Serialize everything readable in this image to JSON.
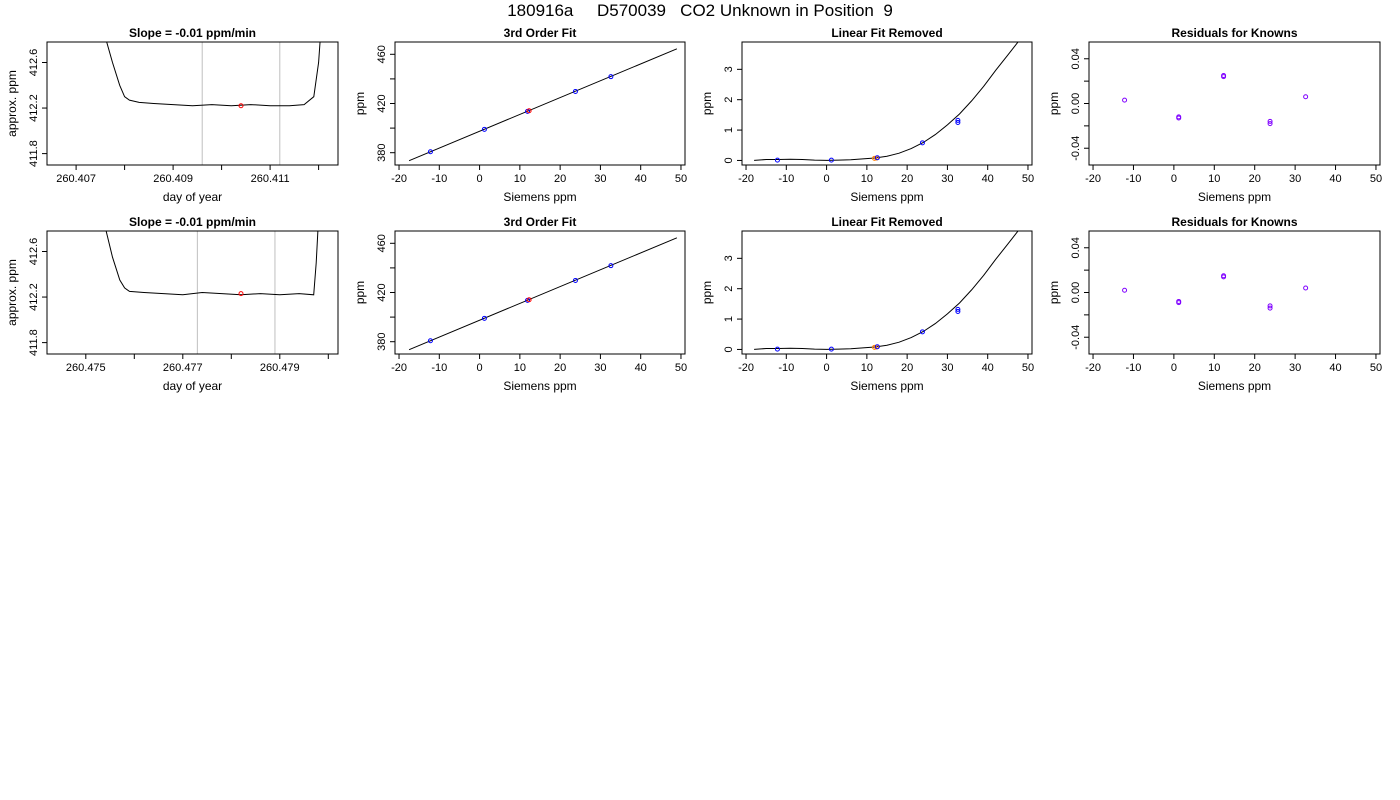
{
  "title": "180916a     D570039   CO2 Unknown in Position  9",
  "colors": {
    "axis": "#000000",
    "curve": "#000000",
    "marker_blue": "#0000ff",
    "marker_red": "#ff0000",
    "marker_purple": "#7f00ff",
    "vline": "#bebebe"
  },
  "chart_data": [
    {
      "type": "line",
      "row": 1,
      "panel": "timeseries",
      "title": "Slope =  -0.01  ppm/min",
      "xlabel": "day of year",
      "ylabel": "approx. ppm",
      "xlim": [
        260.4064,
        260.4124
      ],
      "ylim": [
        411.7,
        412.78
      ],
      "xticks": [
        260.407,
        260.408,
        260.409,
        260.41,
        260.411,
        260.412
      ],
      "xtick_labels": [
        "260.407",
        "",
        "260.409",
        "",
        "260.411",
        ""
      ],
      "yticks": [
        411.8,
        412.2,
        412.6
      ],
      "ytick_labels": [
        "411.8",
        "412.2",
        "412.6"
      ],
      "vlines": [
        260.4096,
        260.4112
      ],
      "series": [
        {
          "x": [
            260.40755,
            260.40775,
            260.4079,
            260.408,
            260.4081,
            260.4083,
            260.4086,
            260.409,
            260.4094,
            260.4098,
            260.4102,
            260.4106,
            260.411,
            260.4114,
            260.4117,
            260.4119,
            260.412,
            260.41205
          ],
          "y": [
            412.9,
            412.6,
            412.4,
            412.3,
            412.27,
            412.25,
            412.24,
            412.23,
            412.22,
            412.23,
            412.22,
            412.23,
            412.22,
            412.22,
            412.23,
            412.3,
            412.6,
            412.9
          ]
        }
      ],
      "marker": {
        "x": 260.4104,
        "y": 412.22,
        "color": "#ff0000"
      }
    },
    {
      "type": "scatter",
      "row": 1,
      "panel": "fit",
      "title": "3rd Order Fit",
      "xlabel": "Siemens ppm",
      "ylabel": "ppm",
      "xlim": [
        -21,
        51
      ],
      "ylim": [
        370,
        470
      ],
      "xticks": [
        -20,
        -10,
        0,
        10,
        20,
        30,
        40,
        50
      ],
      "xtick_labels": [
        "-20",
        "-10",
        "0",
        "10",
        "20",
        "30",
        "40",
        "50"
      ],
      "yticks": [
        380,
        400,
        420,
        440,
        460
      ],
      "ytick_labels": [
        "380",
        "",
        "420",
        "",
        "460"
      ],
      "curve": {
        "x": [
          -17.5,
          49
        ],
        "y": [
          373.5,
          464.5
        ]
      },
      "series": [
        {
          "color": "#0000ff",
          "x": [
            -12.2,
            1.2,
            11.9,
            23.8,
            32.6
          ],
          "y": [
            380.8,
            399.0,
            413.6,
            429.8,
            441.8
          ]
        },
        {
          "color": "#ff0000",
          "x": [
            12.3
          ],
          "y": [
            414.1
          ]
        }
      ]
    },
    {
      "type": "scatter",
      "row": 1,
      "panel": "linear-removed",
      "title": "Linear Fit Removed",
      "xlabel": "Siemens ppm",
      "ylabel": "ppm",
      "xlim": [
        -21,
        51
      ],
      "ylim": [
        -0.15,
        3.9
      ],
      "xticks": [
        -20,
        -10,
        0,
        10,
        20,
        30,
        40,
        50
      ],
      "xtick_labels": [
        "-20",
        "-10",
        "0",
        "10",
        "20",
        "30",
        "40",
        "50"
      ],
      "yticks": [
        0,
        1,
        2,
        3
      ],
      "ytick_labels": [
        "0",
        "1",
        "2",
        "3"
      ],
      "curve": {
        "x": [
          -18,
          -15,
          -12,
          -9,
          -6,
          -3,
          0,
          3,
          6,
          9,
          12,
          15,
          18,
          21,
          24,
          27,
          30,
          33,
          36,
          39,
          42,
          45,
          48,
          49
        ],
        "y": [
          0.0,
          0.03,
          0.03,
          0.04,
          0.03,
          0.01,
          0.0,
          0.01,
          0.02,
          0.05,
          0.08,
          0.14,
          0.24,
          0.39,
          0.59,
          0.85,
          1.17,
          1.53,
          1.96,
          2.44,
          2.97,
          3.47,
          3.98,
          4.15
        ]
      },
      "series": [
        {
          "color": "#0000ff",
          "x": [
            -12.2,
            1.2,
            23.8,
            32.6,
            32.6
          ],
          "y": [
            0.01,
            0.01,
            0.58,
            1.25,
            1.32
          ]
        },
        {
          "color": "#ff7f00",
          "x": [
            11.9,
            12.4
          ],
          "y": [
            0.07,
            0.08
          ]
        },
        {
          "color": "#0000ff",
          "x": [
            12.6
          ],
          "y": [
            0.09
          ]
        }
      ]
    },
    {
      "type": "scatter",
      "row": 1,
      "panel": "residuals",
      "title": "Residuals for Knowns",
      "xlabel": "Siemens ppm",
      "ylabel": "ppm",
      "xlim": [
        -21,
        51
      ],
      "ylim": [
        -0.055,
        0.055
      ],
      "xticks": [
        -20,
        -10,
        0,
        10,
        20,
        30,
        40,
        50
      ],
      "xtick_labels": [
        "-20",
        "-10",
        "0",
        "10",
        "20",
        "30",
        "40",
        "50"
      ],
      "yticks": [
        -0.04,
        -0.02,
        0.0,
        0.02,
        0.04
      ],
      "ytick_labels": [
        "-0.04",
        "",
        "0.00",
        "",
        "0.04"
      ],
      "series": [
        {
          "color": "#7f00ff",
          "x": [
            -12.2,
            1.2,
            1.2,
            12.3,
            12.3,
            23.8,
            23.8,
            32.6
          ],
          "y": [
            0.003,
            -0.012,
            -0.013,
            0.025,
            0.024,
            -0.016,
            -0.018,
            0.006
          ]
        }
      ]
    },
    {
      "type": "line",
      "row": 2,
      "panel": "timeseries",
      "title": "Slope =  -0.01  ppm/min",
      "xlabel": "day of year",
      "ylabel": "approx. ppm",
      "xlim": [
        260.4742,
        260.4802
      ],
      "ylim": [
        411.7,
        412.78
      ],
      "xticks": [
        260.475,
        260.476,
        260.477,
        260.478,
        260.479,
        260.48
      ],
      "xtick_labels": [
        "260.475",
        "",
        "260.477",
        "",
        "260.479",
        ""
      ],
      "yticks": [
        411.8,
        412.2,
        412.6
      ],
      "ytick_labels": [
        "411.8",
        "412.2",
        "412.6"
      ],
      "vlines": [
        260.4773,
        260.4789
      ],
      "series": [
        {
          "x": [
            260.47535,
            260.47555,
            260.4757,
            260.4758,
            260.4759,
            260.4762,
            260.4766,
            260.477,
            260.4774,
            260.4778,
            260.4782,
            260.4786,
            260.479,
            260.4794,
            260.4797,
            260.47975,
            260.4798
          ],
          "y": [
            412.9,
            412.55,
            412.35,
            412.28,
            412.25,
            412.24,
            412.23,
            412.22,
            412.24,
            412.23,
            412.22,
            412.23,
            412.22,
            412.23,
            412.22,
            412.5,
            412.9
          ]
        }
      ],
      "marker": {
        "x": 260.4782,
        "y": 412.23,
        "color": "#ff0000"
      }
    },
    {
      "type": "scatter",
      "row": 2,
      "panel": "fit",
      "title": "3rd Order Fit",
      "xlabel": "Siemens ppm",
      "ylabel": "ppm",
      "xlim": [
        -21,
        51
      ],
      "ylim": [
        370,
        470
      ],
      "xticks": [
        -20,
        -10,
        0,
        10,
        20,
        30,
        40,
        50
      ],
      "xtick_labels": [
        "-20",
        "-10",
        "0",
        "10",
        "20",
        "30",
        "40",
        "50"
      ],
      "yticks": [
        380,
        400,
        420,
        440,
        460
      ],
      "ytick_labels": [
        "380",
        "",
        "420",
        "",
        "460"
      ],
      "curve": {
        "x": [
          -17.5,
          49
        ],
        "y": [
          373.5,
          464.5
        ]
      },
      "series": [
        {
          "color": "#0000ff",
          "x": [
            -12.2,
            1.2,
            11.9,
            23.8,
            32.6
          ],
          "y": [
            380.8,
            399.0,
            413.6,
            429.8,
            441.8
          ]
        },
        {
          "color": "#ff0000",
          "x": [
            12.3
          ],
          "y": [
            414.1
          ]
        }
      ]
    },
    {
      "type": "scatter",
      "row": 2,
      "panel": "linear-removed",
      "title": "Linear Fit Removed",
      "xlabel": "Siemens ppm",
      "ylabel": "ppm",
      "xlim": [
        -21,
        51
      ],
      "ylim": [
        -0.15,
        3.9
      ],
      "xticks": [
        -20,
        -10,
        0,
        10,
        20,
        30,
        40,
        50
      ],
      "xtick_labels": [
        "-20",
        "-10",
        "0",
        "10",
        "20",
        "30",
        "40",
        "50"
      ],
      "yticks": [
        0,
        1,
        2,
        3
      ],
      "ytick_labels": [
        "0",
        "1",
        "2",
        "3"
      ],
      "curve": {
        "x": [
          -18,
          -15,
          -12,
          -9,
          -6,
          -3,
          0,
          3,
          6,
          9,
          12,
          15,
          18,
          21,
          24,
          27,
          30,
          33,
          36,
          39,
          42,
          45,
          48,
          49
        ],
        "y": [
          0.0,
          0.03,
          0.03,
          0.04,
          0.03,
          0.01,
          0.0,
          0.01,
          0.02,
          0.05,
          0.08,
          0.14,
          0.24,
          0.39,
          0.59,
          0.85,
          1.17,
          1.53,
          1.96,
          2.44,
          2.97,
          3.47,
          3.98,
          4.15
        ]
      },
      "series": [
        {
          "color": "#0000ff",
          "x": [
            -12.2,
            1.2,
            23.8,
            32.6,
            32.6
          ],
          "y": [
            0.01,
            0.01,
            0.58,
            1.25,
            1.32
          ]
        },
        {
          "color": "#ff7f00",
          "x": [
            11.9,
            12.4
          ],
          "y": [
            0.07,
            0.08
          ]
        },
        {
          "color": "#0000ff",
          "x": [
            12.6
          ],
          "y": [
            0.09
          ]
        }
      ]
    },
    {
      "type": "scatter",
      "row": 2,
      "panel": "residuals",
      "title": "Residuals for Knowns",
      "xlabel": "Siemens ppm",
      "ylabel": "ppm",
      "xlim": [
        -21,
        51
      ],
      "ylim": [
        -0.055,
        0.055
      ],
      "xticks": [
        -20,
        -10,
        0,
        10,
        20,
        30,
        40,
        50
      ],
      "xtick_labels": [
        "-20",
        "-10",
        "0",
        "10",
        "20",
        "30",
        "40",
        "50"
      ],
      "yticks": [
        -0.04,
        -0.02,
        0.0,
        0.02,
        0.04
      ],
      "ytick_labels": [
        "-0.04",
        "",
        "0.00",
        "",
        "0.04"
      ],
      "series": [
        {
          "color": "#7f00ff",
          "x": [
            -12.2,
            1.2,
            1.2,
            12.3,
            12.3,
            23.8,
            23.8,
            32.6
          ],
          "y": [
            0.002,
            -0.008,
            -0.009,
            0.015,
            0.014,
            -0.012,
            -0.014,
            0.004
          ]
        }
      ]
    }
  ]
}
